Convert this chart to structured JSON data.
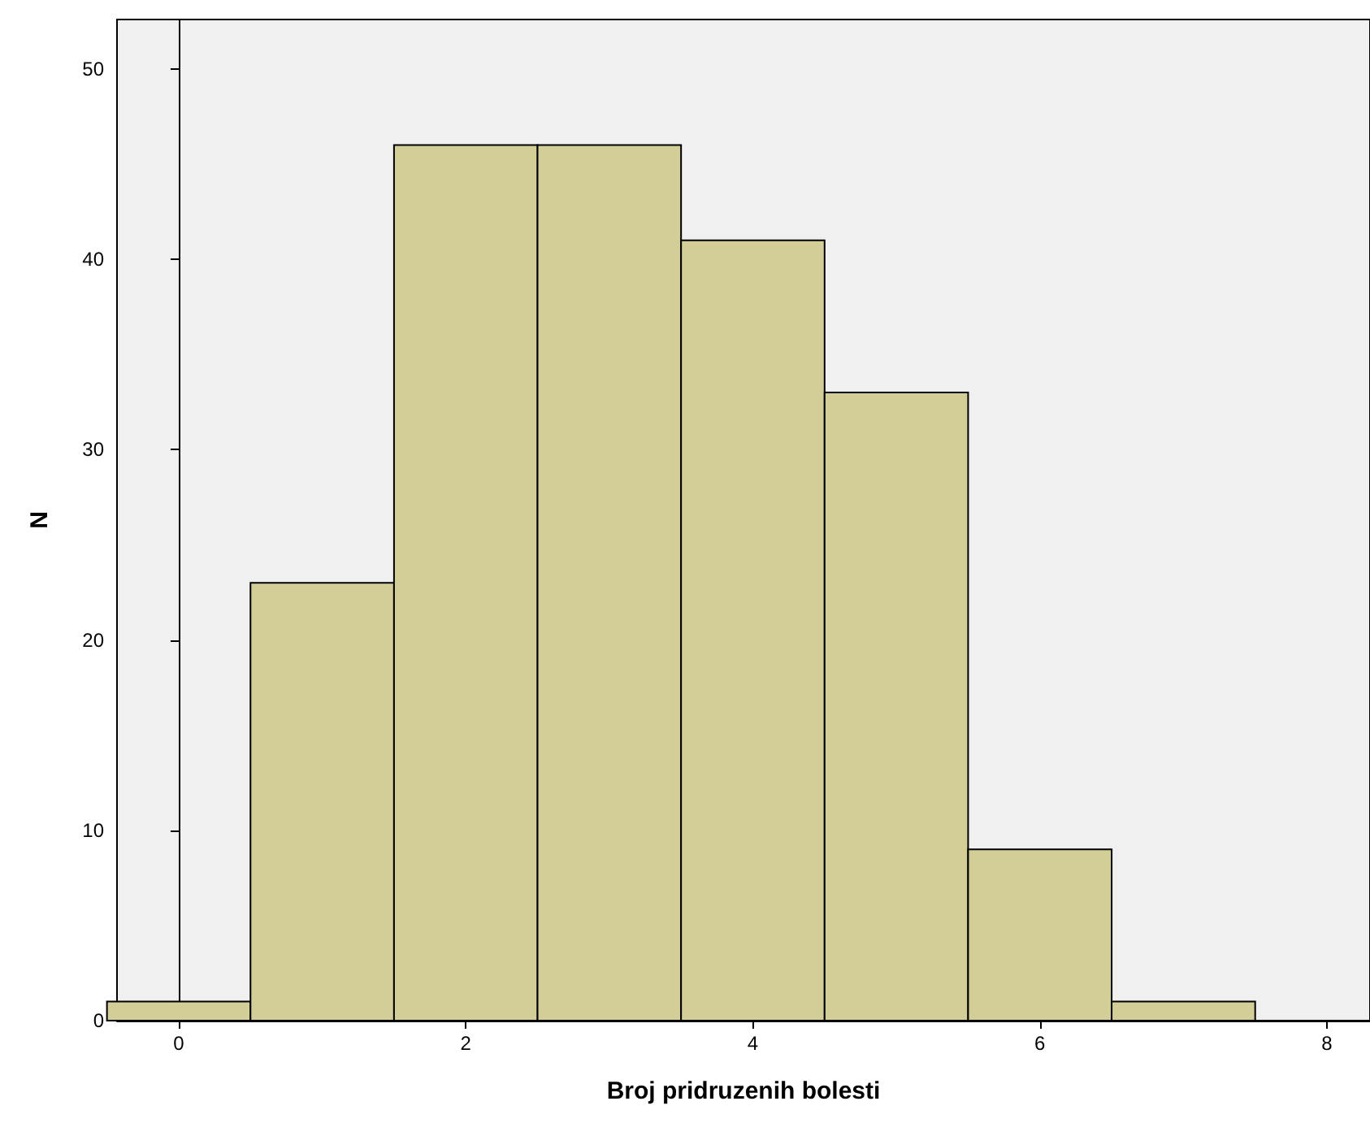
{
  "chart_data": {
    "type": "histogram",
    "xlabel": "Broj pridruzenih bolesti",
    "ylabel": "N",
    "bins": [
      -0.5,
      0.5,
      1.5,
      2.5,
      3.5,
      4.5,
      5.5,
      6.5,
      7.5
    ],
    "values": [
      1,
      23,
      46,
      46,
      41,
      33,
      9,
      1
    ],
    "color": "#d3ce97",
    "xlim": [
      -0.43,
      8.3
    ],
    "xticks": [
      0,
      2,
      4,
      6,
      8
    ],
    "ylim": [
      0,
      52.6
    ],
    "yticks": [
      0,
      10,
      20,
      30,
      40,
      50
    ]
  }
}
